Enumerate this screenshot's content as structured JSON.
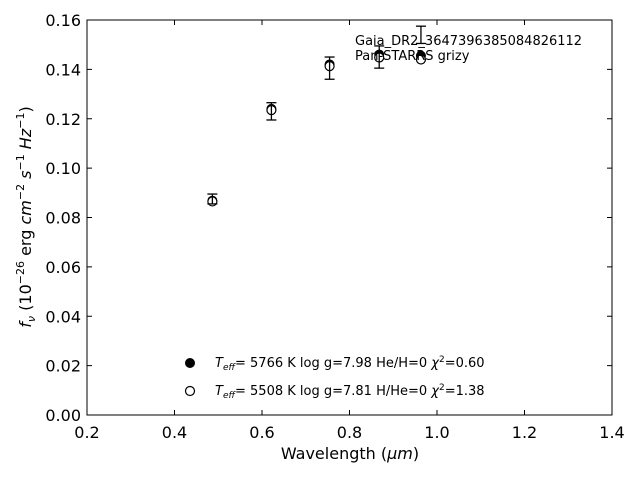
{
  "chart_data": {
    "type": "scatter",
    "xlabel_main": "Wavelength (",
    "xlabel_unit": "μm",
    "xlabel_close": ")",
    "ylabel_prefix": "f",
    "ylabel_sub": "ν",
    "ylabel_open": " (10",
    "ylabel_exp": "−26",
    "ylabel_erg": " erg ",
    "ylabel_cm": "cm",
    "ylabel_cm_exp": "−2",
    "ylabel_s": " s",
    "ylabel_s_exp": "−1",
    "ylabel_hz": " Hz",
    "ylabel_hz_exp": "−1",
    "ylabel_close": ")",
    "xlim": [
      0.2,
      1.4
    ],
    "ylim": [
      0.0,
      0.16
    ],
    "xticks": [
      "0.2",
      "0.4",
      "0.6",
      "0.8",
      "1.0",
      "1.2",
      "1.4"
    ],
    "yticks": [
      "0.00",
      "0.02",
      "0.04",
      "0.06",
      "0.08",
      "0.10",
      "0.12",
      "0.14",
      "0.16"
    ],
    "annotations": [
      "Gaia_DR2_3647396385084826112",
      "Pan-STARRS grizy"
    ],
    "observed": {
      "x": [
        0.4866,
        0.6215,
        0.7545,
        0.8679,
        0.9633
      ],
      "y": [
        0.0875,
        0.123,
        0.1405,
        0.145,
        0.154
      ],
      "yerr": [
        0.002,
        0.0035,
        0.0045,
        0.0045,
        0.0035
      ]
    },
    "series": [
      {
        "name_teff": "T",
        "name_teff_sub": "eff",
        "name_mid": "=  5766 K  log g=7.98  He/H=0  ",
        "name_chi": "χ",
        "name_chi_exp": "2",
        "name_end": "=0.60",
        "marker": "filled",
        "x": [
          0.4866,
          0.6215,
          0.7545,
          0.8679,
          0.9633
        ],
        "y": [
          0.0868,
          0.124,
          0.142,
          0.146,
          0.1455
        ]
      },
      {
        "name_teff": "T",
        "name_teff_sub": "eff",
        "name_mid": "=  5508 K  log g=7.81  H/He=0  ",
        "name_chi": "χ",
        "name_chi_exp": "2",
        "name_end": "=1.38",
        "marker": "open",
        "x": [
          0.4866,
          0.6215,
          0.7545,
          0.8679,
          0.9633
        ],
        "y": [
          0.0865,
          0.1235,
          0.1413,
          0.1448,
          0.144
        ]
      }
    ]
  }
}
